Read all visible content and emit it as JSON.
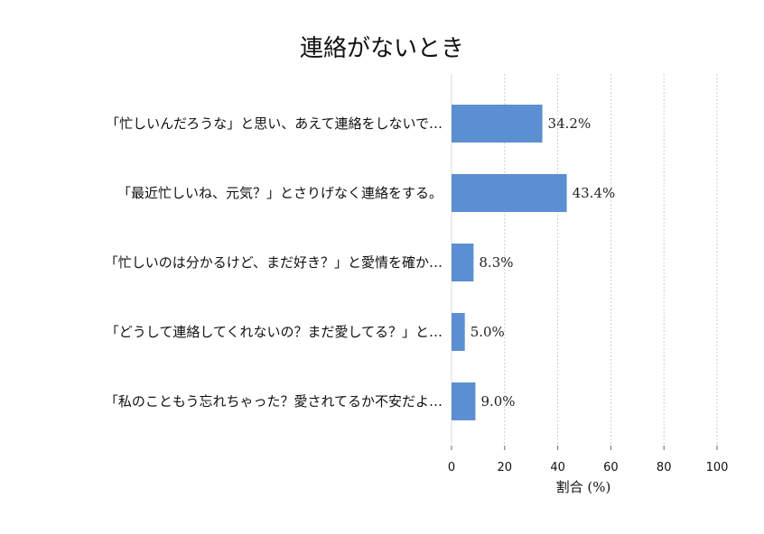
{
  "chart_data": {
    "type": "bar",
    "orientation": "horizontal",
    "title": "連絡がないとき",
    "xlabel": "割合 (%)",
    "ylabel": "",
    "xlim": [
      0,
      100
    ],
    "x_ticks": [
      "0",
      "20",
      "40",
      "60",
      "80",
      "100"
    ],
    "grid": true,
    "categories": [
      "「忙しいんだろうな」と思い、あえて連絡をしないで…",
      "「最近忙しいね、元気？」とさりげなく連絡をする。",
      "「忙しいのは分かるけど、まだ好き？」と愛情を確か…",
      "「どうして連絡してくれないの？まだ愛してる？」と…",
      "「私のこともう忘れちゃった？愛されてるか不安だよ…"
    ],
    "values": [
      34.2,
      43.4,
      8.3,
      5.0,
      9.0
    ],
    "data_labels": [
      "34.2%",
      "43.4%",
      "8.3%",
      "5.0%",
      "9.0%"
    ],
    "bar_color": "#5b8fd1"
  }
}
